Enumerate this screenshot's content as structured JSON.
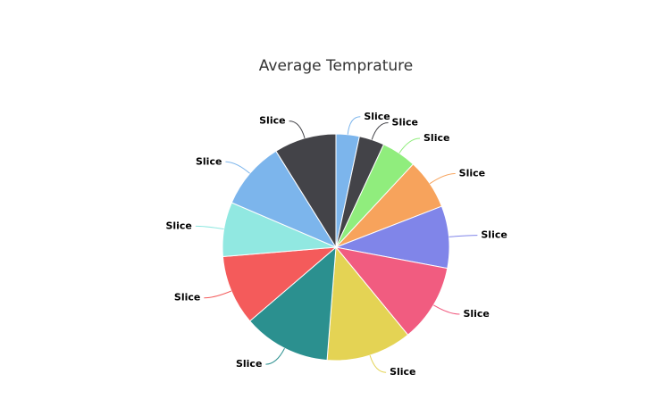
{
  "chart_data": {
    "type": "pie",
    "title": "Average Temprature",
    "categories": [
      "Slice",
      "Slice",
      "Slice",
      "Slice",
      "Slice",
      "Slice",
      "Slice",
      "Slice",
      "Slice",
      "Slice",
      "Slice",
      "Slice"
    ],
    "values": [
      12,
      13,
      18,
      26,
      32,
      40,
      44,
      45,
      36,
      28,
      35,
      32
    ],
    "colors": [
      "#7cb5ec",
      "#434348",
      "#90ed7d",
      "#f7a35c",
      "#8085e9",
      "#f15c80",
      "#e4d354",
      "#2b908f",
      "#f45b5b",
      "#91e8e1",
      "#7cb5ec",
      "#434348"
    ]
  }
}
